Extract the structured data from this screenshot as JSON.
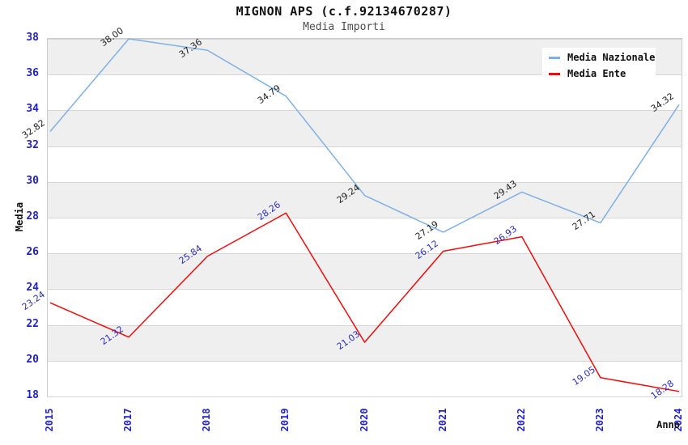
{
  "title": "MIGNON APS (c.f.92134670287)",
  "subtitle": "Media Importi",
  "chart_data": {
    "type": "line",
    "title": "MIGNON APS (c.f.92134670287)",
    "subtitle": "Media Importi",
    "xlabel": "Anno",
    "ylabel": "Media",
    "categories": [
      "2015",
      "2017",
      "2018",
      "2019",
      "2020",
      "2021",
      "2022",
      "2023",
      "2024"
    ],
    "series": [
      {
        "name": "Media Nazionale",
        "color": "#7fb0e4",
        "label_color": "#222222",
        "values": [
          32.82,
          38.0,
          37.36,
          34.79,
          29.24,
          27.19,
          29.43,
          27.71,
          34.32
        ]
      },
      {
        "name": "Media Ente",
        "color": "#ee0c0c",
        "label_color": "#2d2dbb",
        "values": [
          23.24,
          21.32,
          25.84,
          28.26,
          21.03,
          26.12,
          26.93,
          19.05,
          18.28
        ]
      }
    ],
    "ylim": [
      18,
      38
    ],
    "ytick_step": 2,
    "grid": "horizontal-only",
    "band_fill": "#efefef",
    "legend_position": "top-right",
    "colors": {
      "axis_tick": "#2222cc",
      "gridline": "#d6d6d6",
      "plot_border": "#cccccc",
      "band": "#efefef",
      "legend_bg": "#ffffff"
    }
  }
}
